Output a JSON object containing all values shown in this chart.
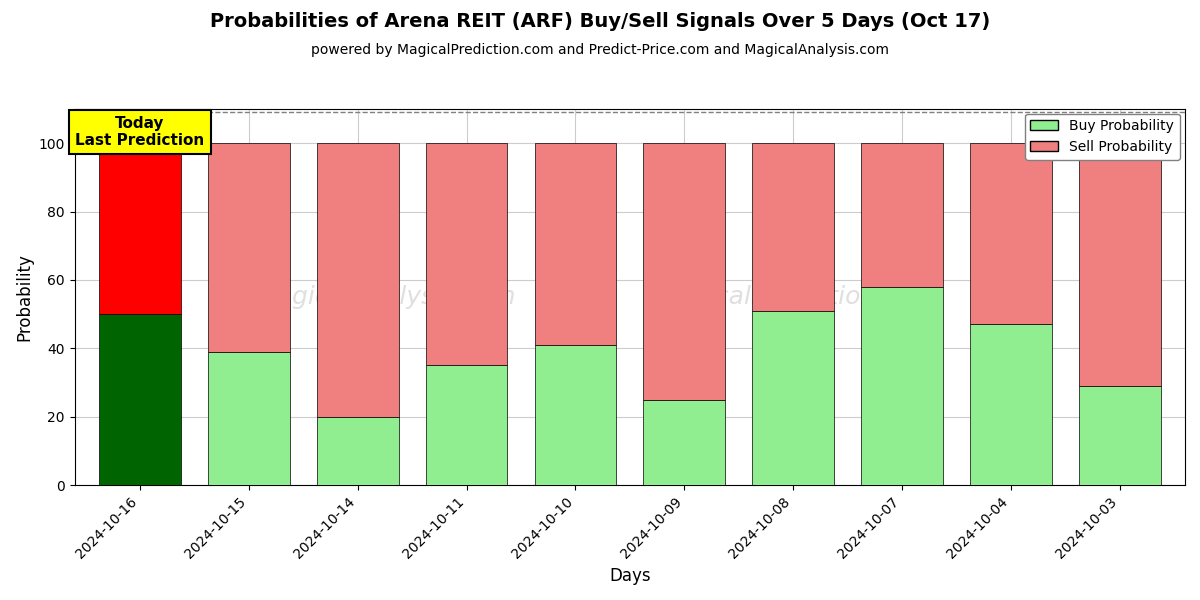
{
  "title": "Probabilities of Arena REIT (ARF) Buy/Sell Signals Over 5 Days (Oct 17)",
  "subtitle": "powered by MagicalPrediction.com and Predict-Price.com and MagicalAnalysis.com",
  "xlabel": "Days",
  "ylabel": "Probability",
  "dates": [
    "2024-10-16",
    "2024-10-15",
    "2024-10-14",
    "2024-10-11",
    "2024-10-10",
    "2024-10-09",
    "2024-10-08",
    "2024-10-07",
    "2024-10-04",
    "2024-10-03"
  ],
  "buy_probs": [
    50,
    39,
    20,
    35,
    41,
    25,
    51,
    58,
    47,
    29
  ],
  "sell_probs": [
    50,
    61,
    80,
    65,
    59,
    75,
    49,
    42,
    53,
    71
  ],
  "buy_color_today": "#006400",
  "sell_color_today": "#FF0000",
  "buy_color_rest": "#90EE90",
  "sell_color_rest": "#F08080",
  "today_label_bg": "#FFFF00",
  "today_label_text": "Today\nLast Prediction",
  "legend_buy": "Buy Probability",
  "legend_sell": "Sell Probability",
  "ylim": [
    0,
    110
  ],
  "yticks": [
    0,
    20,
    40,
    60,
    80,
    100
  ],
  "dashed_line_y": 109,
  "background_color": "#ffffff",
  "grid_color": "#cccccc",
  "title_fontsize": 14,
  "subtitle_fontsize": 10,
  "bar_width": 0.75
}
